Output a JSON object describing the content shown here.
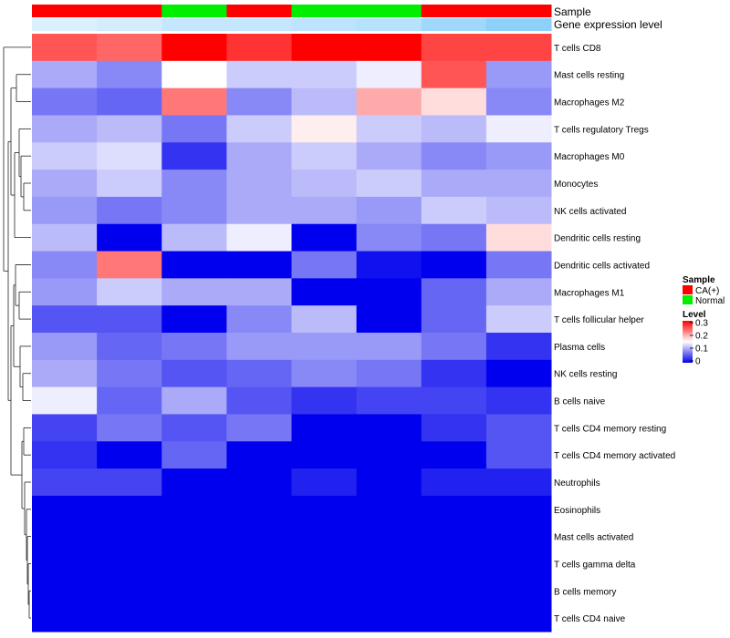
{
  "chart_data": {
    "type": "heatmap",
    "title": "",
    "annotation_tracks": [
      {
        "name": "Sample",
        "values": [
          "CA(+)",
          "CA(+)",
          "Normal",
          "CA(+)",
          "Normal",
          "Normal",
          "CA(+)",
          "CA(+)"
        ],
        "colors": {
          "CA(+)": "#ff0000",
          "Normal": "#00ee00"
        }
      },
      {
        "name": "Gene expression level",
        "values": [
          0.3,
          0.36,
          0.48,
          0.48,
          0.55,
          0.6,
          0.8,
          0.95
        ],
        "colors": [
          "#ffffff",
          "#87cefa"
        ]
      }
    ],
    "rows": [
      "T cells CD8",
      "Mast cells resting",
      "Macrophages M2",
      "T cells regulatory  Tregs",
      "Macrophages M0",
      "Monocytes",
      "NK cells activated",
      "Dendritic cells resting",
      "Dendritic cells activated",
      "Macrophages M1",
      "T cells follicular helper",
      "Plasma cells",
      "NK cells resting",
      "B cells naive",
      "T cells CD4 memory resting",
      "T cells CD4 memory activated",
      "Neutrophils",
      "Eosinophils",
      "Mast cells activated",
      "T cells gamma delta",
      "B cells memory",
      "T cells CD4 naive"
    ],
    "values": [
      [
        0.25,
        0.24,
        0.3,
        0.27,
        0.3,
        0.3,
        0.26,
        0.26
      ],
      [
        0.1,
        0.08,
        0.15,
        0.12,
        0.12,
        0.14,
        0.25,
        0.09
      ],
      [
        0.07,
        0.06,
        0.23,
        0.08,
        0.11,
        0.2,
        0.17,
        0.08
      ],
      [
        0.1,
        0.11,
        0.07,
        0.12,
        0.16,
        0.12,
        0.11,
        0.14
      ],
      [
        0.12,
        0.13,
        0.03,
        0.1,
        0.12,
        0.1,
        0.08,
        0.09
      ],
      [
        0.1,
        0.12,
        0.08,
        0.1,
        0.11,
        0.12,
        0.1,
        0.1
      ],
      [
        0.09,
        0.07,
        0.08,
        0.1,
        0.1,
        0.09,
        0.12,
        0.11
      ],
      [
        0.11,
        0.0,
        0.11,
        0.14,
        0.0,
        0.08,
        0.07,
        0.17
      ],
      [
        0.08,
        0.23,
        0.0,
        0.0,
        0.07,
        0.01,
        0.0,
        0.07
      ],
      [
        0.09,
        0.12,
        0.1,
        0.1,
        0.0,
        0.0,
        0.06,
        0.1
      ],
      [
        0.05,
        0.05,
        0.0,
        0.08,
        0.11,
        0.0,
        0.06,
        0.12
      ],
      [
        0.09,
        0.06,
        0.07,
        0.09,
        0.09,
        0.09,
        0.07,
        0.03
      ],
      [
        0.1,
        0.07,
        0.05,
        0.06,
        0.08,
        0.07,
        0.03,
        0.0
      ],
      [
        0.14,
        0.06,
        0.1,
        0.05,
        0.03,
        0.04,
        0.04,
        0.03
      ],
      [
        0.04,
        0.07,
        0.05,
        0.07,
        0.0,
        0.0,
        0.03,
        0.05
      ],
      [
        0.03,
        0.0,
        0.06,
        0.0,
        0.0,
        0.0,
        0.0,
        0.05
      ],
      [
        0.04,
        0.04,
        0.0,
        0.0,
        0.02,
        0.0,
        0.02,
        0.02
      ],
      [
        0.0,
        0.0,
        0.0,
        0.0,
        0.0,
        0.0,
        0.0,
        0.0
      ],
      [
        0.0,
        0.0,
        0.0,
        0.0,
        0.0,
        0.0,
        0.0,
        0.0
      ],
      [
        0.0,
        0.0,
        0.0,
        0.0,
        0.0,
        0.0,
        0.0,
        0.0
      ],
      [
        0.0,
        0.0,
        0.0,
        0.0,
        0.0,
        0.0,
        0.0,
        0.0
      ],
      [
        0.0,
        0.0,
        0.0,
        0.0,
        0.0,
        0.0,
        0.0,
        0.0
      ]
    ],
    "color_scale": {
      "low": "#0000ee",
      "mid": "#ffffff",
      "high": "#ff0000",
      "min": 0,
      "max": 0.3
    },
    "legend": {
      "placement": "right",
      "sample_title": "Sample",
      "sample_entries": [
        {
          "label": "CA(+)",
          "color": "#ff0000"
        },
        {
          "label": "Normal",
          "color": "#00ee00"
        }
      ],
      "level_title": "Level",
      "level_ticks": [
        "0.3",
        "0.2",
        "0.1",
        "0"
      ]
    },
    "dendrogram": "rows"
  }
}
